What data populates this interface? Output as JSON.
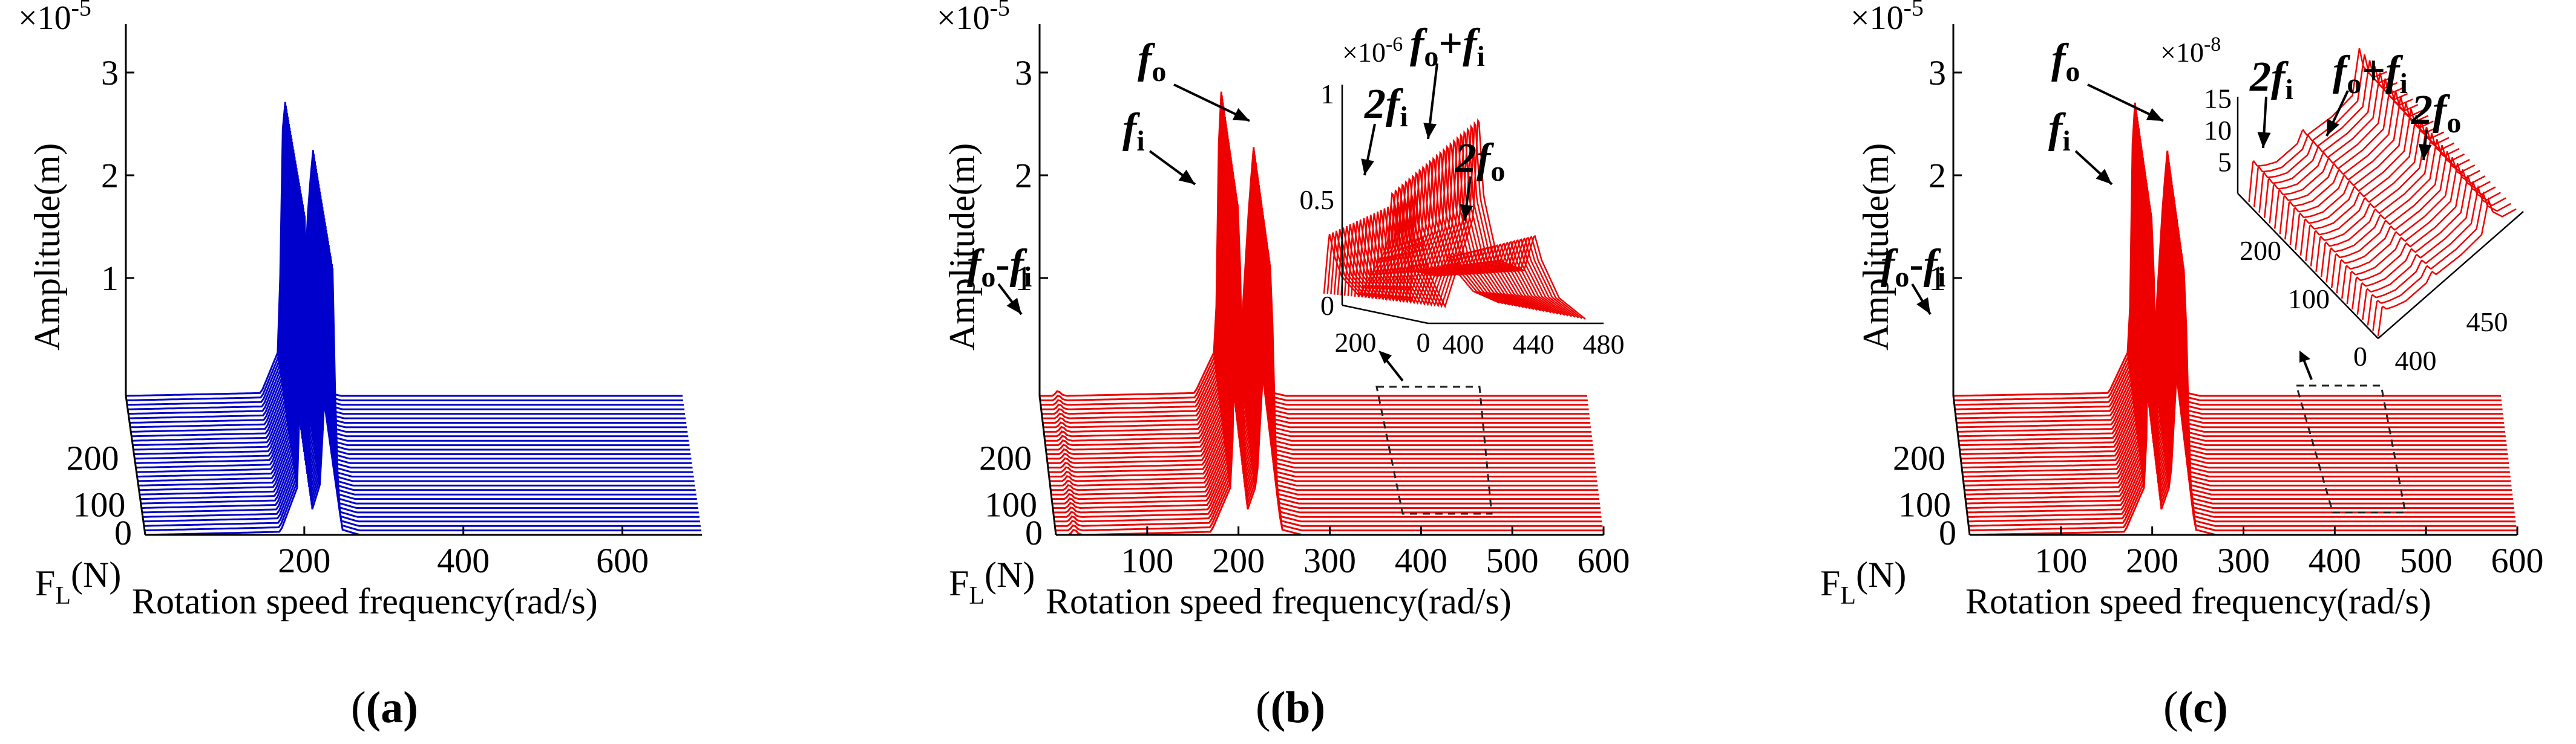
{
  "figure": {
    "panels": [
      {
        "label": "(a)",
        "color": "#0000cc",
        "chart_data": {
          "type": "line",
          "title": "",
          "xlabel": "Rotation speed frequency(rad/s)",
          "ylabel": "Amplitude(m)",
          "zlabel": "F",
          "zlabel_sub": "L",
          "zlabel_unit": "(N)",
          "y_multiplier_base": "×10",
          "y_multiplier_exp": "-5",
          "xlim": [
            0,
            720
          ],
          "zlim": [
            0,
            300
          ],
          "ylim": [
            0,
            3.5
          ],
          "x_ticks": [
            "200",
            "400",
            "600"
          ],
          "x_tick_values": [
            200,
            400,
            600
          ],
          "y_ticks": [
            "1",
            "2",
            "3"
          ],
          "y_tick_values": [
            1,
            2,
            3
          ],
          "z_ticks": [
            "0",
            "100",
            "200"
          ],
          "z_tick_values": [
            0,
            100,
            200
          ],
          "x": [
            0,
            170,
            193,
            196,
            200,
            205,
            210,
            220,
            230,
            236,
            238,
            243,
            248,
            270,
            700
          ],
          "series_count": 32,
          "series_fL_range": [
            0,
            250
          ],
          "base_profile": [
            0,
            0.03,
            0.5,
            2.6,
            3.3,
            1.2,
            0.25,
            0.5,
            2.1,
            2.65,
            1.6,
            0.3,
            0.05,
            0,
            0
          ],
          "peak_trend": "decreasing with F_L",
          "annotations": []
        }
      },
      {
        "label": "(b)",
        "color": "#ee0000",
        "chart_data": {
          "type": "line",
          "title": "",
          "xlabel": "Rotation speed frequency(rad/s)",
          "ylabel": "Amplitude(m)",
          "zlabel": "F",
          "zlabel_sub": "L",
          "zlabel_unit": "(N)",
          "y_multiplier_base": "×10",
          "y_multiplier_exp": "-5",
          "xlim": [
            0,
            600
          ],
          "zlim": [
            0,
            300
          ],
          "ylim": [
            0,
            3.5
          ],
          "x_ticks": [
            "100",
            "200",
            "300",
            "400",
            "500",
            "600"
          ],
          "x_tick_values": [
            100,
            200,
            300,
            400,
            500,
            600
          ],
          "y_ticks": [
            "1",
            "2",
            "3"
          ],
          "y_tick_values": [
            1,
            2,
            3
          ],
          "z_ticks": [
            "0",
            "100",
            "200"
          ],
          "z_tick_values": [
            0,
            100,
            200
          ],
          "x": [
            0,
            15,
            20,
            25,
            30,
            170,
            193,
            196,
            200,
            205,
            210,
            220,
            230,
            236,
            238,
            243,
            248,
            270,
            600
          ],
          "series_count": 32,
          "series_fL_range": [
            0,
            250
          ],
          "base_profile": [
            0,
            0,
            0.06,
            0.01,
            0,
            0.03,
            0.5,
            2.6,
            3.4,
            1.2,
            0.25,
            0.5,
            2.1,
            2.8,
            1.6,
            0.3,
            0.05,
            0,
            0
          ],
          "annotations": [
            {
              "main": "f",
              "sub": "o",
              "op": "-",
              "main2": "f",
              "sub2": "i"
            },
            {
              "main": "f",
              "sub": "i"
            },
            {
              "main": "f",
              "sub": "o"
            }
          ],
          "inset": {
            "multiplier_base": "×10",
            "multiplier_exp": "-6",
            "xlim": [
              380,
              480
            ],
            "ylim": [
              0,
              1
            ],
            "x_ticks": [
              "400",
              "440",
              "480"
            ],
            "x_tick_values": [
              400,
              440,
              480
            ],
            "y_ticks": [
              "0",
              "0.5",
              "1"
            ],
            "y_tick_values": [
              0,
              0.5,
              1
            ],
            "z_ticks": [
              "200",
              "0"
            ],
            "z_tick_values": [
              200,
              0
            ],
            "x": [
              380,
              383,
              386,
              390,
              400,
              416,
              419,
              422,
              430,
              445,
              451,
              455,
              465,
              480
            ],
            "base_profile": [
              0.1,
              0.62,
              0.42,
              0.25,
              0.08,
              0.5,
              1.0,
              0.6,
              0.3,
              0.25,
              0.42,
              0.3,
              0.12,
              0.02
            ],
            "annotations": [
              {
                "main": "2f",
                "sub": "i"
              },
              {
                "main": "f",
                "sub": "o",
                "op": "+",
                "main2": "f",
                "sub2": "i"
              },
              {
                "main": "2f",
                "sub": "o"
              }
            ]
          }
        }
      },
      {
        "label": "(c)",
        "color": "#ee0000",
        "chart_data": {
          "type": "line",
          "title": "",
          "xlabel": "Rotation speed frequency(rad/s)",
          "ylabel": "Amplitude(m)",
          "zlabel": "F",
          "zlabel_sub": "L",
          "zlabel_unit": "(N)",
          "y_multiplier_base": "×10",
          "y_multiplier_exp": "-5",
          "xlim": [
            0,
            600
          ],
          "zlim": [
            0,
            300
          ],
          "ylim": [
            0,
            3.5
          ],
          "x_ticks": [
            "100",
            "200",
            "300",
            "400",
            "500",
            "600"
          ],
          "x_tick_values": [
            100,
            200,
            300,
            400,
            500,
            600
          ],
          "y_ticks": [
            "1",
            "2",
            "3"
          ],
          "y_tick_values": [
            1,
            2,
            3
          ],
          "z_ticks": [
            "0",
            "100",
            "200"
          ],
          "z_tick_values": [
            0,
            100,
            200
          ],
          "x": [
            0,
            170,
            193,
            196,
            200,
            205,
            210,
            220,
            230,
            236,
            238,
            243,
            248,
            270,
            600
          ],
          "series_count": 32,
          "series_fL_range": [
            0,
            250
          ],
          "base_profile": [
            0,
            0.03,
            0.5,
            2.6,
            3.25,
            1.2,
            0.25,
            0.5,
            2.1,
            2.75,
            1.6,
            0.3,
            0.05,
            0,
            0
          ],
          "annotations": [
            {
              "main": "f",
              "sub": "o",
              "op": "-",
              "main2": "f",
              "sub2": "i"
            },
            {
              "main": "f",
              "sub": "i"
            },
            {
              "main": "f",
              "sub": "o"
            }
          ],
          "inset": {
            "multiplier_base": "×10",
            "multiplier_exp": "-8",
            "xlim": [
              380,
              480
            ],
            "ylim": [
              0,
              15
            ],
            "x_ticks": [
              "400",
              "450"
            ],
            "x_tick_values": [
              400,
              450
            ],
            "y_ticks": [
              "5",
              "10",
              "15"
            ],
            "y_tick_values": [
              5,
              10,
              15
            ],
            "z_ticks": [
              "200",
              "100",
              "0"
            ],
            "z_tick_values": [
              200,
              100,
              0
            ],
            "x": [
              380,
              383,
              386,
              392,
              400,
              415,
              419,
              422,
              440,
              455,
              460,
              463,
              470,
              480
            ],
            "base_profile": [
              0.5,
              6.5,
              5.0,
              4.0,
              3.0,
              3.0,
              4.5,
              3.0,
              2.5,
              3.0,
              9.5,
              6.0,
              3.0,
              2.0
            ],
            "annotations": [
              {
                "main": "2f",
                "sub": "i"
              },
              {
                "main": "f",
                "sub": "o",
                "op": "+",
                "main2": "f",
                "sub2": "i"
              },
              {
                "main": "2f",
                "sub": "o"
              }
            ]
          }
        }
      }
    ]
  }
}
